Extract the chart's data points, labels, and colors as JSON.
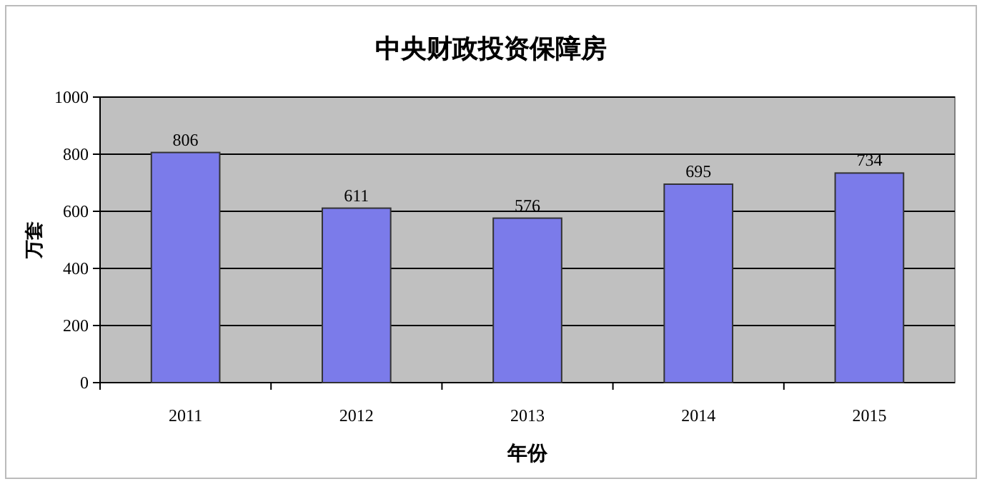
{
  "chart_data": {
    "type": "bar",
    "title": "中央财政投资保障房",
    "xlabel": "年份",
    "ylabel": "万套",
    "categories": [
      "2011",
      "2012",
      "2013",
      "2014",
      "2015"
    ],
    "values": [
      806,
      611,
      576,
      695,
      734
    ],
    "color": "#7b7bea",
    "ylim": [
      0,
      1000
    ],
    "yticks": [
      0,
      200,
      400,
      600,
      800,
      1000
    ],
    "grid": "y",
    "data_labels": true
  }
}
